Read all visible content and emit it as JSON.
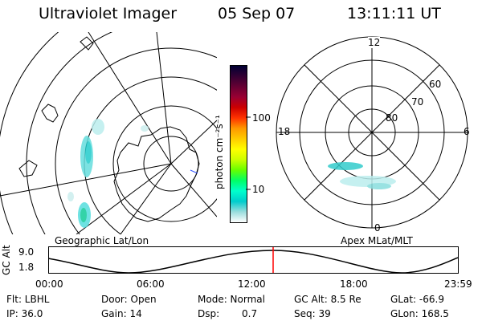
{
  "header": {
    "title": "Ultraviolet Imager",
    "date": "05 Sep 07",
    "time": "13:11:11 UT"
  },
  "colorbar": {
    "unit_label": "photon cm⁻²s⁻¹",
    "ticks": [
      "100",
      "10"
    ],
    "stops": [
      "#000033",
      "#330033",
      "#660033",
      "#990033",
      "#cc0000",
      "#ff3300",
      "#ff9900",
      "#ffcc00",
      "#ffff00",
      "#ccff00",
      "#66ff00",
      "#00ff66",
      "#00ffcc",
      "#00cccc",
      "#99dddd",
      "#ffffff"
    ]
  },
  "geo_panel": {
    "label": "Geographic Lat/Lon"
  },
  "polar_panel": {
    "label": "Apex MLat/MLT",
    "mlt_labels": {
      "top": "12",
      "bottom": "0",
      "left": "18",
      "right": "6"
    },
    "lat_labels": [
      "60",
      "70",
      "80"
    ]
  },
  "timeline": {
    "axis_title": "GC Alt",
    "y_max_label": "9.0",
    "y_min_label": "1.8",
    "x_ticks": [
      "00:00",
      "06:00",
      "12:00",
      "18:00",
      "23:59"
    ],
    "marker_color": "#ff0000"
  },
  "info": {
    "row1": {
      "filter": "Flt: LBHL",
      "door": "Door: Open",
      "mode": "Mode: Normal",
      "gc_alt": "GC Alt: 8.5 Re",
      "glat": "GLat: -66.9"
    },
    "row2": {
      "ip": "IP: 36.0",
      "gain": "Gain: 14",
      "dsp_label": "Dsp:",
      "dsp_value": "0.7",
      "seq": "Seq: 39",
      "glon": "GLon: 168.5"
    }
  }
}
